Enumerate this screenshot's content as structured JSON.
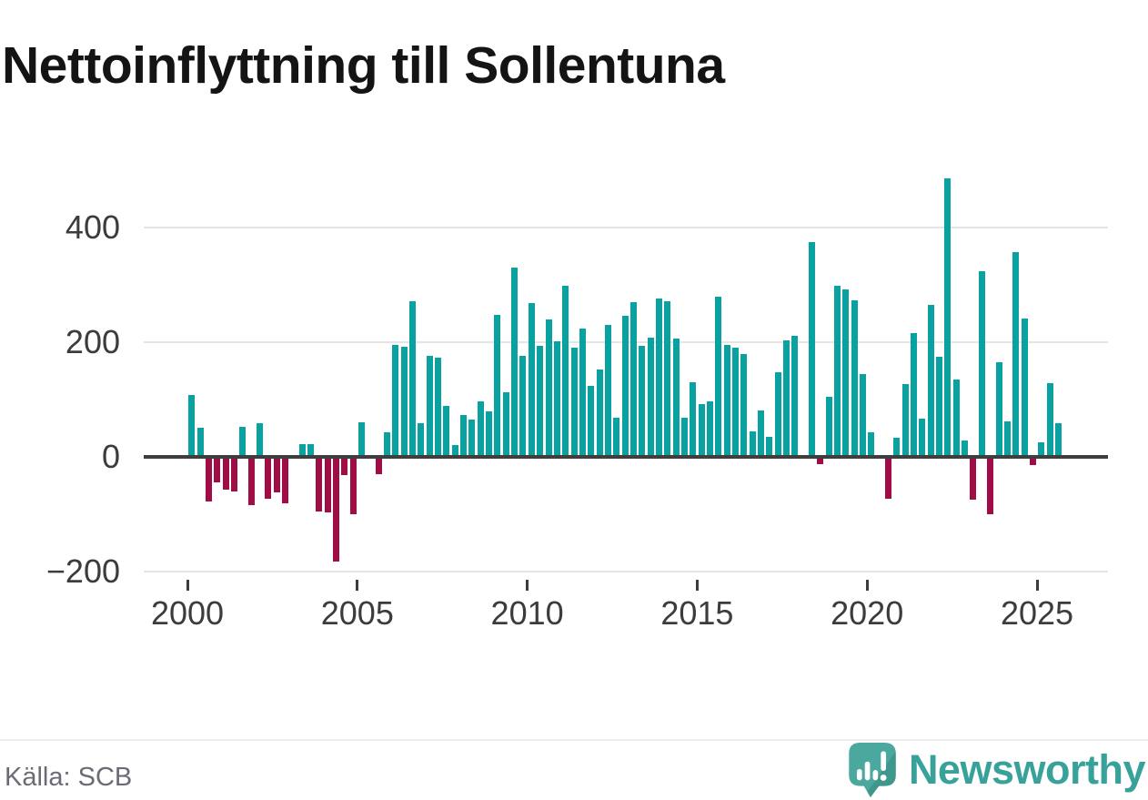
{
  "title": "Nettoinflyttning till Sollentuna",
  "source": "Källa: SCB",
  "logo": {
    "text": "Newsworthy",
    "icon": "newsworthy-chart-bubble-icon"
  },
  "colors": {
    "bar_positive": "#0aa2a0",
    "bar_negative": "#a00d46",
    "grid": "#e4e4e4",
    "zero_axis": "#3e3e3e",
    "axis_text": "#3c3c3c",
    "title_text": "#141414",
    "source_text": "#6b6b75",
    "logo_teal": "#4ba89f",
    "logo_teal_dark": "#3f968c",
    "logo_text_teal": "#38a29a"
  },
  "chart_data": {
    "type": "bar",
    "title": "Nettoinflyttning till Sollentuna",
    "xlabel": "",
    "ylabel": "",
    "grid": "horizontal",
    "legend": "none",
    "ylim": [
      -210,
      500
    ],
    "y_ticks": [
      {
        "value": 400,
        "label": "400"
      },
      {
        "value": 200,
        "label": "200"
      },
      {
        "value": 0,
        "label": "0"
      },
      {
        "value": -200,
        "label": "−200"
      }
    ],
    "x_ticks": [
      "2000",
      "2005",
      "2010",
      "2015",
      "2020",
      "2025"
    ],
    "x": [
      "2000Q1",
      "2000Q2",
      "2000Q3",
      "2000Q4",
      "2001Q1",
      "2001Q2",
      "2001Q3",
      "2001Q4",
      "2002Q1",
      "2002Q2",
      "2002Q3",
      "2002Q4",
      "2003Q1",
      "2003Q2",
      "2003Q3",
      "2003Q4",
      "2004Q1",
      "2004Q2",
      "2004Q3",
      "2004Q4",
      "2005Q1",
      "2005Q2",
      "2005Q3",
      "2005Q4",
      "2006Q1",
      "2006Q2",
      "2006Q3",
      "2006Q4",
      "2007Q1",
      "2007Q2",
      "2007Q3",
      "2007Q4",
      "2008Q1",
      "2008Q2",
      "2008Q3",
      "2008Q4",
      "2009Q1",
      "2009Q2",
      "2009Q3",
      "2009Q4",
      "2010Q1",
      "2010Q2",
      "2010Q3",
      "2010Q4",
      "2011Q1",
      "2011Q2",
      "2011Q3",
      "2011Q4",
      "2012Q1",
      "2012Q2",
      "2012Q3",
      "2012Q4",
      "2013Q1",
      "2013Q2",
      "2013Q3",
      "2013Q4",
      "2014Q1",
      "2014Q2",
      "2014Q3",
      "2014Q4",
      "2015Q1",
      "2015Q2",
      "2015Q3",
      "2015Q4",
      "2016Q1",
      "2016Q2",
      "2016Q3",
      "2016Q4",
      "2017Q1",
      "2017Q2",
      "2017Q3",
      "2017Q4",
      "2018Q1",
      "2018Q2",
      "2018Q3",
      "2018Q4",
      "2019Q1",
      "2019Q2",
      "2019Q3",
      "2019Q4",
      "2020Q1",
      "2020Q2",
      "2020Q3",
      "2020Q4",
      "2021Q1",
      "2021Q2",
      "2021Q3",
      "2021Q4",
      "2022Q1",
      "2022Q2",
      "2022Q3",
      "2022Q4",
      "2023Q1",
      "2023Q2",
      "2023Q3",
      "2023Q4",
      "2024Q1",
      "2024Q2",
      "2024Q3",
      "2024Q4",
      "2025Q1",
      "2025Q2",
      "2025Q3"
    ],
    "values": [
      107,
      51,
      -78,
      -45,
      -58,
      -61,
      52,
      -84,
      58,
      -74,
      -63,
      -82,
      0,
      22,
      22,
      -95,
      -98,
      -183,
      -32,
      -100,
      60,
      0,
      -30,
      42,
      195,
      192,
      271,
      58,
      176,
      173,
      88,
      21,
      72,
      64,
      96,
      79,
      247,
      112,
      330,
      176,
      268,
      193,
      240,
      201,
      298,
      190,
      223,
      124,
      152,
      230,
      68,
      246,
      270,
      193,
      208,
      275,
      271,
      206,
      68,
      130,
      92,
      97,
      279,
      195,
      190,
      179,
      44,
      80,
      34,
      147,
      203,
      211,
      0,
      374,
      -14,
      105,
      298,
      292,
      272,
      144,
      42,
      0,
      -74,
      33,
      126,
      215,
      66,
      264,
      174,
      485,
      135,
      28,
      -75,
      324,
      -100,
      164,
      62,
      357,
      241,
      -15,
      25,
      128,
      58
    ]
  }
}
